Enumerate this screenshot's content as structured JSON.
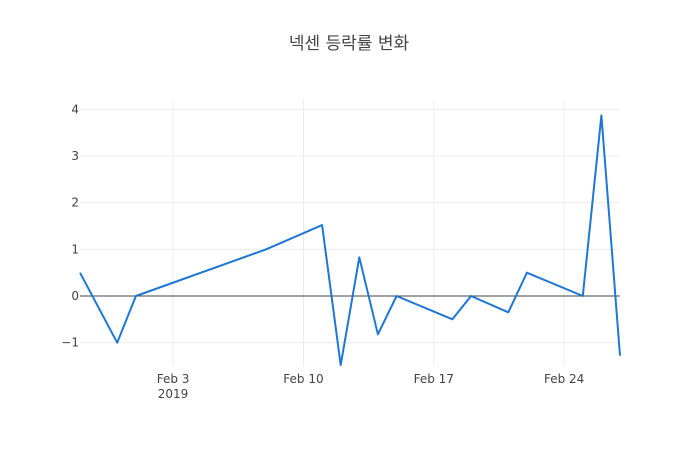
{
  "chart_data": {
    "type": "line",
    "title": "넥센 등락률 변화",
    "xlabel": "",
    "ylabel": "",
    "x_tick_labels": [
      "Feb 3",
      "Feb 10",
      "Feb 17",
      "Feb 24"
    ],
    "x_tick_dates": [
      "2019-02-03",
      "2019-02-10",
      "2019-02-17",
      "2019-02-24"
    ],
    "x_year_label": "2019",
    "xlim": [
      "2019-01-29",
      "2019-02-27"
    ],
    "ylim": [
      -1.5,
      4.2
    ],
    "y_ticks": [
      4,
      3,
      2,
      1,
      0,
      -1
    ],
    "y_tick_labels": [
      "4",
      "3",
      "2",
      "1",
      "0",
      "−1"
    ],
    "grid": true,
    "zero_line": true,
    "line_color": "#1f77d4",
    "series": [
      {
        "x": [
          "2019-01-29",
          "2019-01-31",
          "2019-02-01",
          "2019-02-08",
          "2019-02-11",
          "2019-02-12",
          "2019-02-13",
          "2019-02-14",
          "2019-02-15",
          "2019-02-18",
          "2019-02-19",
          "2019-02-21",
          "2019-02-22",
          "2019-02-25",
          "2019-02-26",
          "2019-02-27"
        ],
        "y": [
          0.5,
          -1.0,
          0.0,
          1.0,
          1.52,
          -1.48,
          0.83,
          -0.82,
          0.0,
          -0.5,
          0.0,
          -0.35,
          0.5,
          0.0,
          3.87,
          -1.28
        ]
      }
    ]
  }
}
